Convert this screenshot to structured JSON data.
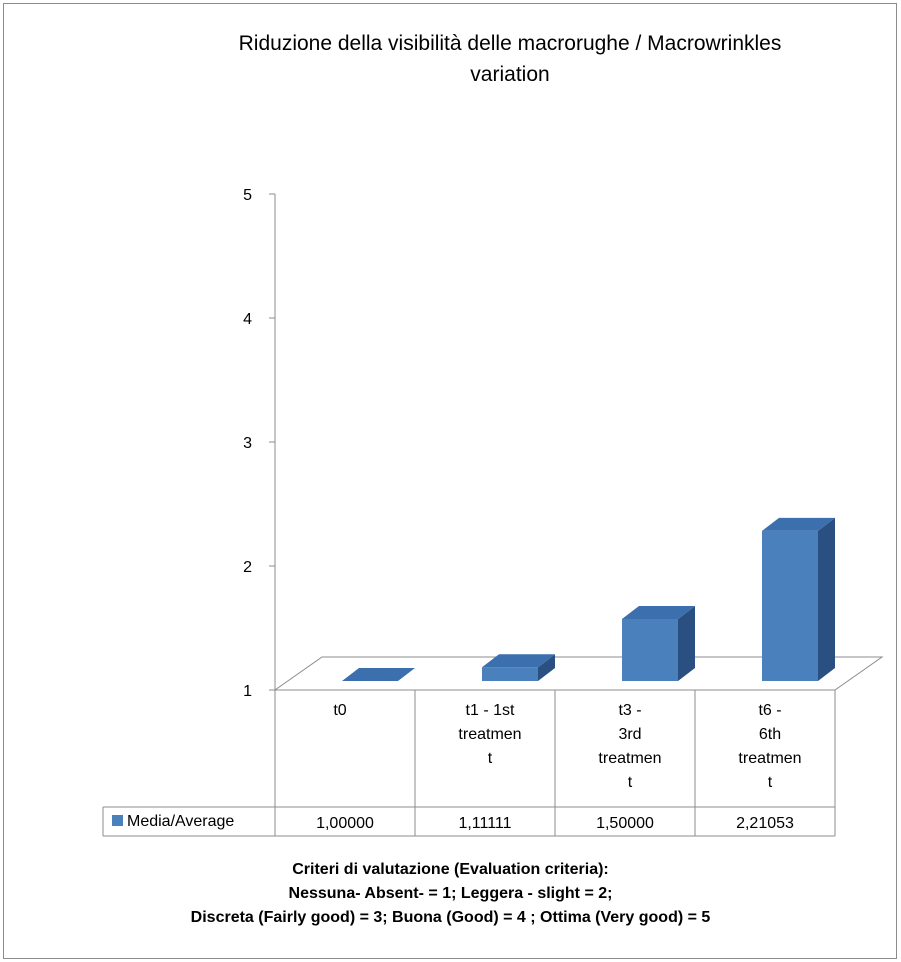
{
  "chart_data": {
    "type": "bar",
    "title_line1": "Riduzione della visibilità delle macrorughe   / Macrowrinkles",
    "title_line2": "variation",
    "categories": [
      [
        "t0"
      ],
      [
        "t1 - 1st",
        "treatmen",
        "t"
      ],
      [
        "t3 -",
        "3rd",
        "treatmen",
        "t"
      ],
      [
        "t6 -",
        "6th",
        "treatmen",
        "t"
      ]
    ],
    "series": [
      {
        "name": "Media/Average",
        "values": [
          1.0,
          1.11111,
          1.5,
          2.21053
        ],
        "value_labels": [
          "1,00000",
          "1,11111",
          "1,50000",
          "2,21053"
        ],
        "color": "#4a81bd"
      }
    ],
    "ylim": [
      1,
      5
    ],
    "yticks": [
      "1",
      "2",
      "3",
      "4",
      "5"
    ],
    "grid": false,
    "legend": "data-table"
  },
  "footer": {
    "line1": "Criteri di valutazione (Evaluation criteria):",
    "line2": "Nessuna- Absent- = 1;  Leggera - slight = 2;",
    "line3": "Discreta (Fairly good) = 3;  Buona (Good) = 4 ; Ottima (Very good) = 5"
  }
}
